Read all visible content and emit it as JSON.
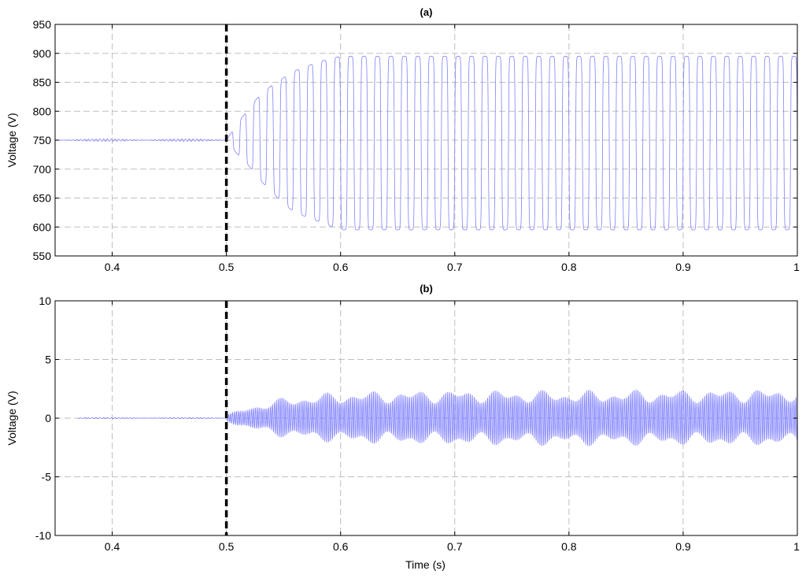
{
  "chart_data": [
    {
      "type": "line",
      "title": "(a)",
      "xlabel": "",
      "ylabel": "Voltage (V)",
      "xlim": [
        0.35,
        1.0
      ],
      "ylim": [
        550,
        950
      ],
      "x_ticks": [
        0.4,
        0.5,
        0.6,
        0.7,
        0.8,
        0.9,
        1
      ],
      "x_tick_labels": [
        "0.4",
        "0.5",
        "0.6",
        "0.7",
        "0.8",
        "0.9",
        "1"
      ],
      "y_ticks": [
        550,
        600,
        650,
        700,
        750,
        800,
        850,
        900,
        950
      ],
      "y_tick_labels": [
        "550",
        "600",
        "650",
        "700",
        "750",
        "800",
        "850",
        "900",
        "950"
      ],
      "grid": true,
      "event_line_x": 0.5,
      "series": [
        {
          "color": "#8080ff",
          "x_start": 0.35,
          "x_end": 1.0,
          "fault_time": 0.5,
          "pre_fault_level": 750,
          "pre_fault_ripple": 2,
          "oscillation_frequency_hz": 85,
          "envelope_time": [
            0.5,
            0.51,
            0.52,
            0.53,
            0.54,
            0.55,
            0.56,
            0.58,
            0.6,
            1.0
          ],
          "envelope_max": [
            750,
            780,
            805,
            830,
            845,
            858,
            870,
            885,
            895,
            895
          ],
          "envelope_min": [
            750,
            725,
            705,
            680,
            660,
            640,
            625,
            610,
            595,
            595
          ]
        }
      ]
    },
    {
      "type": "line",
      "title": "(b)",
      "xlabel": "Time (s)",
      "ylabel": "Voltage (V)",
      "xlim": [
        0.35,
        1.0
      ],
      "ylim": [
        -10,
        10
      ],
      "x_ticks": [
        0.4,
        0.5,
        0.6,
        0.7,
        0.8,
        0.9,
        1
      ],
      "x_tick_labels": [
        "0.4",
        "0.5",
        "0.6",
        "0.7",
        "0.8",
        "0.9",
        "1"
      ],
      "y_ticks": [
        -10,
        -5,
        0,
        5,
        10
      ],
      "y_tick_labels": [
        "-10",
        "-5",
        "0",
        "5",
        "10"
      ],
      "grid": true,
      "event_line_x": 0.5,
      "series": [
        {
          "color": "#8080ff",
          "x_start": 0.37,
          "x_end": 1.0,
          "fault_time": 0.5,
          "pre_fault_level": 0,
          "pre_fault_ripple": 0.05,
          "oscillation_frequency_hz": 600,
          "envelope_time": [
            0.5,
            0.52,
            0.55,
            0.6,
            0.7,
            0.8,
            0.9,
            1.0
          ],
          "envelope_max": [
            0.3,
            1.0,
            1.8,
            2.3,
            2.5,
            2.4,
            2.5,
            2.6
          ],
          "envelope_min": [
            -0.3,
            -1.0,
            -1.7,
            -2.2,
            -2.4,
            -2.4,
            -2.4,
            -2.5
          ]
        }
      ]
    }
  ]
}
